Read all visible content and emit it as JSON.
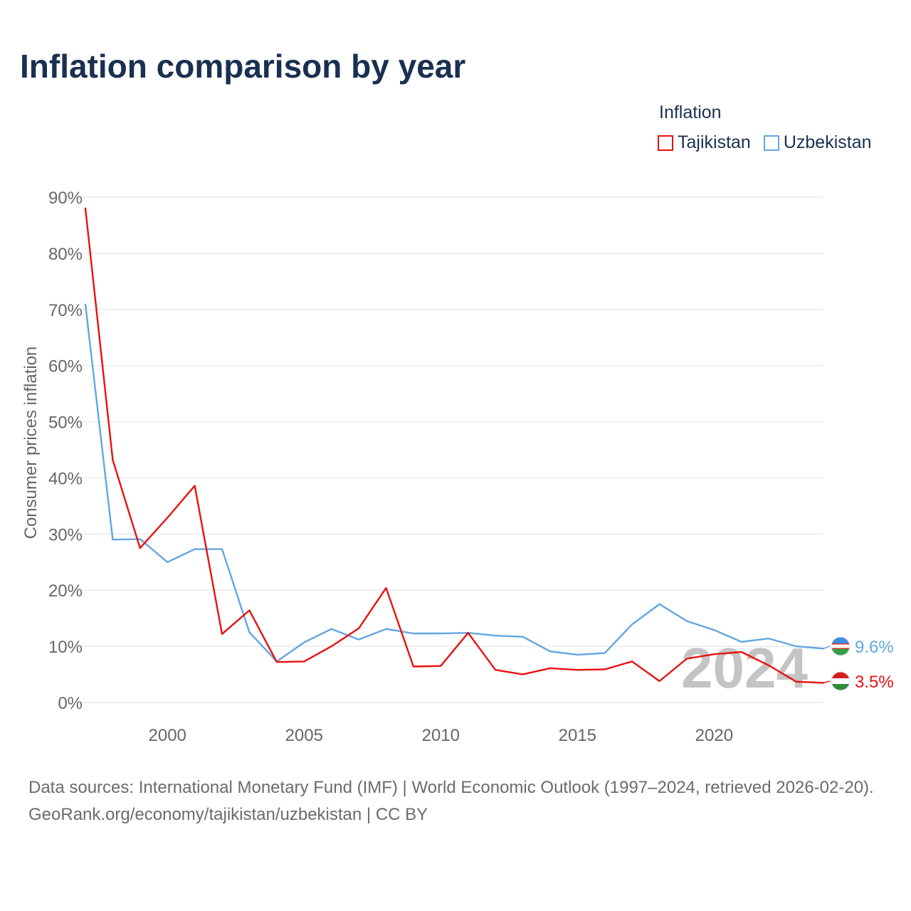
{
  "chart_data": {
    "type": "line",
    "title": "Inflation comparison by year",
    "legend_title": "Inflation",
    "ylabel": "Consumer prices inflation",
    "xlabel": "",
    "xlim": [
      1997,
      2024
    ],
    "ylim": [
      0,
      90
    ],
    "x_ticks": [
      2000,
      2005,
      2010,
      2015,
      2020
    ],
    "y_ticks": [
      0,
      10,
      20,
      30,
      40,
      50,
      60,
      70,
      80,
      90
    ],
    "y_tick_labels": [
      "0%",
      "10%",
      "20%",
      "30%",
      "40%",
      "50%",
      "60%",
      "70%",
      "80%",
      "90%"
    ],
    "x": [
      1997,
      1998,
      1999,
      2000,
      2001,
      2002,
      2003,
      2004,
      2005,
      2006,
      2007,
      2008,
      2009,
      2010,
      2011,
      2012,
      2013,
      2014,
      2015,
      2016,
      2017,
      2018,
      2019,
      2020,
      2021,
      2022,
      2023,
      2024
    ],
    "series": [
      {
        "name": "Tajikistan",
        "color": "#e8110f",
        "values": [
          88.0,
          43.2,
          27.5,
          32.9,
          38.6,
          12.2,
          16.4,
          7.2,
          7.3,
          10.0,
          13.2,
          20.4,
          6.4,
          6.5,
          12.4,
          5.8,
          5.0,
          6.1,
          5.8,
          5.9,
          7.3,
          3.8,
          7.8,
          8.6,
          9.0,
          6.6,
          3.7,
          3.5
        ],
        "end_label": "3.5%"
      },
      {
        "name": "Uzbekistan",
        "color": "#62a6e2",
        "values": [
          70.9,
          29.0,
          29.1,
          25.0,
          27.3,
          27.3,
          12.5,
          7.3,
          10.7,
          13.1,
          11.2,
          13.1,
          12.3,
          12.3,
          12.4,
          11.9,
          11.7,
          9.1,
          8.5,
          8.8,
          13.9,
          17.5,
          14.5,
          12.9,
          10.8,
          11.4,
          10.0,
          9.6
        ],
        "end_label": "9.6%"
      }
    ],
    "year_watermark": "2024"
  },
  "footer": {
    "sources": "Data sources: International Monetary Fund (IMF) | World Economic Outlook (1997–2024, retrieved 2026-02-20).",
    "credit": "GeoRank.org/economy/tajikistan/uzbekistan | CC BY"
  },
  "colors": {
    "title": "#1a3050",
    "grid": "#e6e6e6",
    "axis_text": "#666666",
    "watermark": "#c4c4c4"
  }
}
